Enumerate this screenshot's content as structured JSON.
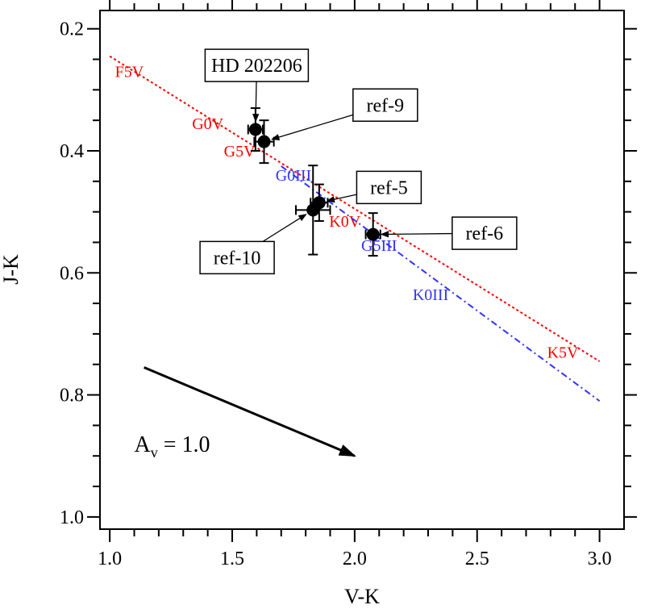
{
  "chart_data": {
    "type": "scatter",
    "xlabel": "V-K",
    "ylabel": "J-K",
    "xlim": [
      0.96,
      3.1
    ],
    "ylim": [
      1.02,
      0.17
    ],
    "y_inverted": true,
    "grid": false,
    "x_ticks": [
      {
        "value": 1.0,
        "label": "1.0"
      },
      {
        "value": 1.5,
        "label": "1.5"
      },
      {
        "value": 2.0,
        "label": "2.0"
      },
      {
        "value": 2.5,
        "label": "2.5"
      },
      {
        "value": 3.0,
        "label": "3.0"
      }
    ],
    "y_ticks": [
      {
        "value": 0.2,
        "label": "0.2"
      },
      {
        "value": 0.4,
        "label": "0.4"
      },
      {
        "value": 0.6,
        "label": "0.6"
      },
      {
        "value": 0.8,
        "label": "0.8"
      },
      {
        "value": 1.0,
        "label": "1.0"
      }
    ],
    "series": [
      {
        "color": "#ff0000",
        "style": "dotted",
        "x": [
          1.0,
          3.0
        ],
        "y": [
          0.245,
          0.745
        ],
        "labels": [
          {
            "text": "F5V",
            "x": 1.08,
            "y": 0.27
          },
          {
            "text": "G0V",
            "x": 1.4,
            "y": 0.355
          },
          {
            "text": "G5V",
            "x": 1.53,
            "y": 0.4
          },
          {
            "text": "K0V",
            "x": 1.96,
            "y": 0.515
          },
          {
            "text": "K5V",
            "x": 2.85,
            "y": 0.73
          }
        ]
      },
      {
        "color": "#3333ff",
        "style": "dash-dot",
        "x": [
          1.7,
          3.0
        ],
        "y": [
          0.425,
          0.81
        ],
        "labels": [
          {
            "text": "G0III",
            "x": 1.75,
            "y": 0.44
          },
          {
            "text": "G5III",
            "x": 2.1,
            "y": 0.555
          },
          {
            "text": "K0III",
            "x": 2.31,
            "y": 0.635
          }
        ]
      }
    ],
    "points": [
      {
        "name": "HD 202206",
        "x": 1.595,
        "y": 0.365,
        "xerr": 0.03,
        "yerr": 0.035,
        "label_x": 1.6,
        "label_y": 0.26
      },
      {
        "name": "ref-9",
        "x": 1.63,
        "y": 0.385,
        "xerr": 0.04,
        "yerr": 0.035,
        "label_x": 2.125,
        "label_y": 0.325
      },
      {
        "name": "ref-5",
        "x": 1.855,
        "y": 0.485,
        "xerr": 0.035,
        "yerr": 0.03,
        "label_x": 2.14,
        "label_y": 0.46
      },
      {
        "name": "ref-10",
        "x": 1.83,
        "y": 0.497,
        "xerr": 0.07,
        "yerr": 0.073,
        "label_x": 1.52,
        "label_y": 0.575
      },
      {
        "name": "ref-6",
        "x": 2.075,
        "y": 0.537,
        "xerr": 0.03,
        "yerr": 0.035,
        "label_x": 2.53,
        "label_y": 0.535
      }
    ],
    "extinction_vector": {
      "label_main": "A",
      "label_sub": "v",
      "label_value": " = 1.0",
      "label_x": 1.1,
      "label_y": 0.88,
      "x_from": 1.14,
      "y_from": 0.755,
      "x_to": 2.0,
      "y_to": 0.9
    }
  }
}
